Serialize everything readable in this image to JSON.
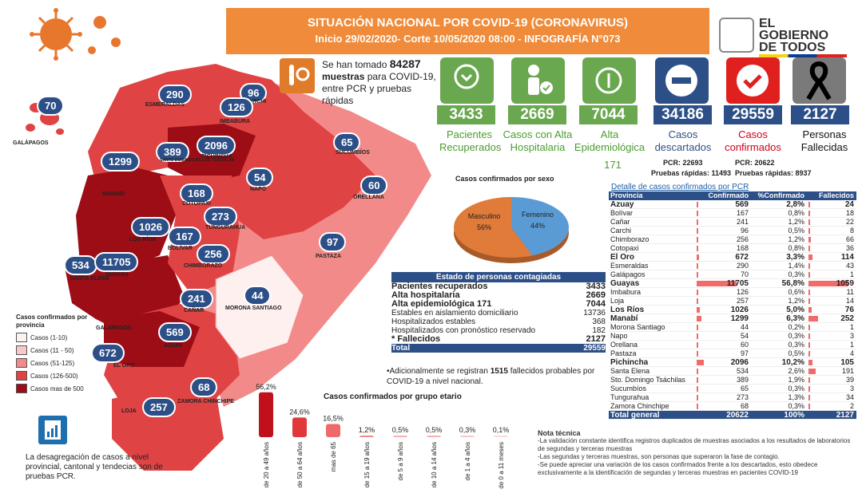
{
  "header": {
    "title": "SITUACIÓN NACIONAL POR  COVID-19 (CORONAVIRUS)",
    "subtitle": "Inicio 29/02/2020- Corte 10/05/2020 08:00  - INFOGRAFÍA N°073"
  },
  "gov_logo": {
    "line1": "EL",
    "line2": "GOBIERNO",
    "line3": "DE TODOS"
  },
  "samples": {
    "line1": "Se han tomado",
    "count": "84287",
    "line2": "muestras",
    "line3": "para COVID-19,",
    "line4": "entre PCR y pruebas",
    "line5": "rápidas"
  },
  "stats": [
    {
      "value": "3433",
      "label": "Pacientes Recuperados",
      "color": "#6aa84f",
      "label_color": "#4a9d2f",
      "icon": "hands-heart-icon"
    },
    {
      "value": "2669",
      "label": "Casos con Alta Hospitalaria",
      "color": "#6aa84f",
      "label_color": "#4a9d2f",
      "icon": "person-check-icon"
    },
    {
      "value": "7044",
      "label": "Alta Epidemiológica",
      "extra": "171",
      "color": "#6aa84f",
      "label_color": "#4a9d2f",
      "icon": "recycle-icon"
    },
    {
      "value": "34186",
      "label": "Casos descartados",
      "color": "#2d4f87",
      "label_color": "#2d4f87",
      "icon": "minus-circle-icon"
    },
    {
      "value": "29559",
      "label": "Casos confirmados",
      "color": "#2d4f87",
      "label_color": "#d0021b",
      "icon": "check-circle-icon"
    },
    {
      "value": "2127",
      "label": "Personas Fallecidas",
      "color": "#2d4f87",
      "label_color": "#111111",
      "icon": "mourning-ribbon-icon"
    }
  ],
  "pcr": {
    "descartados_pcr": "PCR: 22693",
    "descartados_rapidas": "Pruebas rápidas: 11493",
    "confirmados_pcr": "PCR: 20622",
    "confirmados_rapidas": "Pruebas rápidas: 8937"
  },
  "map": {
    "provinces": [
      {
        "name": "GALÁPAGOS",
        "value": "70"
      },
      {
        "name": "ESMERALDAS",
        "value": "290"
      },
      {
        "name": "CARCHI",
        "value": "96"
      },
      {
        "name": "IMBABURA",
        "value": "126"
      },
      {
        "name": "SANTO DOMINGO DE LOS TSÁCHILAS",
        "value": "389"
      },
      {
        "name": "PICHINCHA",
        "value": "2096"
      },
      {
        "name": "SUCUMBÍOS",
        "value": "65"
      },
      {
        "name": "MANABÍ",
        "value": "1299"
      },
      {
        "name": "NAPO",
        "value": "54"
      },
      {
        "name": "ORELLANA",
        "value": "60"
      },
      {
        "name": "COTOPAXI",
        "value": "168"
      },
      {
        "name": "TUNGURAHUA",
        "value": "273"
      },
      {
        "name": "LOS RÍOS",
        "value": "1026"
      },
      {
        "name": "BOLÍVAR",
        "value": "167"
      },
      {
        "name": "PASTAZA",
        "value": "97"
      },
      {
        "name": "SANTA ELENA",
        "value": "534"
      },
      {
        "name": "GUAYAS",
        "value": "11705"
      },
      {
        "name": "CHIMBORAZO",
        "value": "256"
      },
      {
        "name": "MORONA SANTIAGO",
        "value": "44"
      },
      {
        "name": "CAÑAR",
        "value": "241"
      },
      {
        "name": "AZUAY",
        "value": "569"
      },
      {
        "name": "EL ORO",
        "value": "672"
      },
      {
        "name": "ZAMORA CHINCHIPE",
        "value": "68"
      },
      {
        "name": "LOJA",
        "value": "257"
      }
    ],
    "extra_label": "GALAPAGOS"
  },
  "legend": {
    "title": "Casos confirmados por provincia",
    "items": [
      {
        "label": "Casos (1-10)",
        "color": "#fdf2f2"
      },
      {
        "label": "Casos (11 - 50)",
        "color": "#f9c7c7"
      },
      {
        "label": "Casos (51-125)",
        "color": "#f28a8a"
      },
      {
        "label": "Casos (126-500)",
        "color": "#e04343"
      },
      {
        "label": "Casos mas de 500",
        "color": "#9c0d16"
      }
    ]
  },
  "disclaimer": "La desagregación de casos a nivel provincial, cantonal y tendecias son de pruebas PCR.",
  "pie": {
    "title": "Casos confirmados por sexo",
    "slices": [
      {
        "name": "Masculino",
        "pct": "56%",
        "value": 56,
        "color": "#e07b39"
      },
      {
        "name": "Femenino",
        "pct": "44%",
        "value": 44,
        "color": "#5b9bd5"
      }
    ]
  },
  "status_table": {
    "title": "Estado de personas contagiadas",
    "rows": [
      {
        "label": "Pacientes recuperados",
        "value": "3433",
        "bold": true
      },
      {
        "label": "Alta hospitalaria",
        "value": "2669",
        "bold": true
      },
      {
        "label": "Alta epidemiológica 171",
        "value": "7044",
        "bold": true
      },
      {
        "label": "Estables en aislamiento domiciliario",
        "value": "13736",
        "bold": false
      },
      {
        "label": "Hospitalizados estables",
        "value": "368",
        "bold": false
      },
      {
        "label": "Hospitalizados con pronóstico reservado",
        "value": "182",
        "bold": false
      },
      {
        "label": "* Fallecidos",
        "value": "2127",
        "bold": true
      }
    ],
    "total_label": "Total",
    "total_value": "29559"
  },
  "note_1515": {
    "prefix": "•Adicionalmente se registran",
    "bold": "1515",
    "suffix": "fallecidos probables por COVID-19 a nivel nacional."
  },
  "chart_data": {
    "type": "bar",
    "title": "Casos confirmados por grupo etario",
    "categories": [
      "de 20 a 49 años",
      "de 50 a 64 años",
      "mas de 65",
      "de 15 a 19 años",
      "de 5 a 9 años",
      "de 10 a 14 años",
      "de 1 a 4 años",
      "de 0 a 11 meses"
    ],
    "values": [
      56.2,
      24.6,
      16.5,
      1.2,
      0.5,
      0.5,
      0.3,
      0.1
    ],
    "labels": [
      "56,2%",
      "24,6%",
      "16,5%",
      "1,2%",
      "0,5%",
      "0,5%",
      "0,3%",
      "0,1%"
    ],
    "colors": [
      "#c0101b",
      "#e0383a",
      "#ee6a6a",
      "#f28a8a",
      "#f6b0b0",
      "#f6b0b0",
      "#f9c7c7",
      "#fbdada"
    ],
    "xlabel": "",
    "ylabel": "",
    "ylim": [
      0,
      60
    ]
  },
  "prov_table": {
    "title": "Detalle de casos confirmados por PCR",
    "headers": [
      "Provincia",
      "Confirmado",
      "%Confirmado",
      "Fallecidos"
    ],
    "rows": [
      [
        "Azuay",
        "569",
        "2,8%",
        "24",
        true
      ],
      [
        "Bolívar",
        "167",
        "0,8%",
        "18",
        false
      ],
      [
        "Cañar",
        "241",
        "1,2%",
        "22",
        false
      ],
      [
        "Carchi",
        "96",
        "0,5%",
        "8",
        false
      ],
      [
        "Chimborazo",
        "256",
        "1,2%",
        "66",
        false
      ],
      [
        "Cotopaxi",
        "168",
        "0,8%",
        "36",
        false
      ],
      [
        "El Oro",
        "672",
        "3,3%",
        "114",
        true
      ],
      [
        "Esmeraldas",
        "290",
        "1,4%",
        "43",
        false
      ],
      [
        "Galápagos",
        "70",
        "0,3%",
        "1",
        false
      ],
      [
        "Guayas",
        "11705",
        "56,8%",
        "1059",
        true
      ],
      [
        "Imbabura",
        "126",
        "0,6%",
        "11",
        false
      ],
      [
        "Loja",
        "257",
        "1,2%",
        "14",
        false
      ],
      [
        "Los Ríos",
        "1026",
        "5,0%",
        "76",
        true
      ],
      [
        "Manabí",
        "1299",
        "6,3%",
        "252",
        true
      ],
      [
        "Morona Santiago",
        "44",
        "0,2%",
        "1",
        false
      ],
      [
        "Napo",
        "54",
        "0,3%",
        "3",
        false
      ],
      [
        "Orellana",
        "60",
        "0,3%",
        "1",
        false
      ],
      [
        "Pastaza",
        "97",
        "0,5%",
        "4",
        false
      ],
      [
        "Pichincha",
        "2096",
        "10,2%",
        "105",
        true
      ],
      [
        "Santa Elena",
        "534",
        "2,6%",
        "191",
        false
      ],
      [
        "Sto. Domingo Tsáchilas",
        "389",
        "1,9%",
        "39",
        false
      ],
      [
        "Sucumbíos",
        "65",
        "0,3%",
        "3",
        false
      ],
      [
        "Tungurahua",
        "273",
        "1,3%",
        "34",
        false
      ],
      [
        "Zamora Chinchipe",
        "68",
        "0,3%",
        "2",
        false
      ]
    ],
    "total": [
      "Total general",
      "20622",
      "100%",
      "2127"
    ]
  },
  "tech_note": {
    "title": "Nota técnica",
    "lines": [
      "-La validación constante identifica registros duplicados de muestras asociados a los resultados de laboratorios de segundas y terceras muestras",
      "-Las segundas y terceras muestras, son personas que superaron la fase de contagio.",
      "-Se puede apreciar una variación de los casos confirmados frente a los descartados, esto obedece exclusivamente a la identificación de segundas y terceras muestras en pacientes COVID-19"
    ]
  }
}
